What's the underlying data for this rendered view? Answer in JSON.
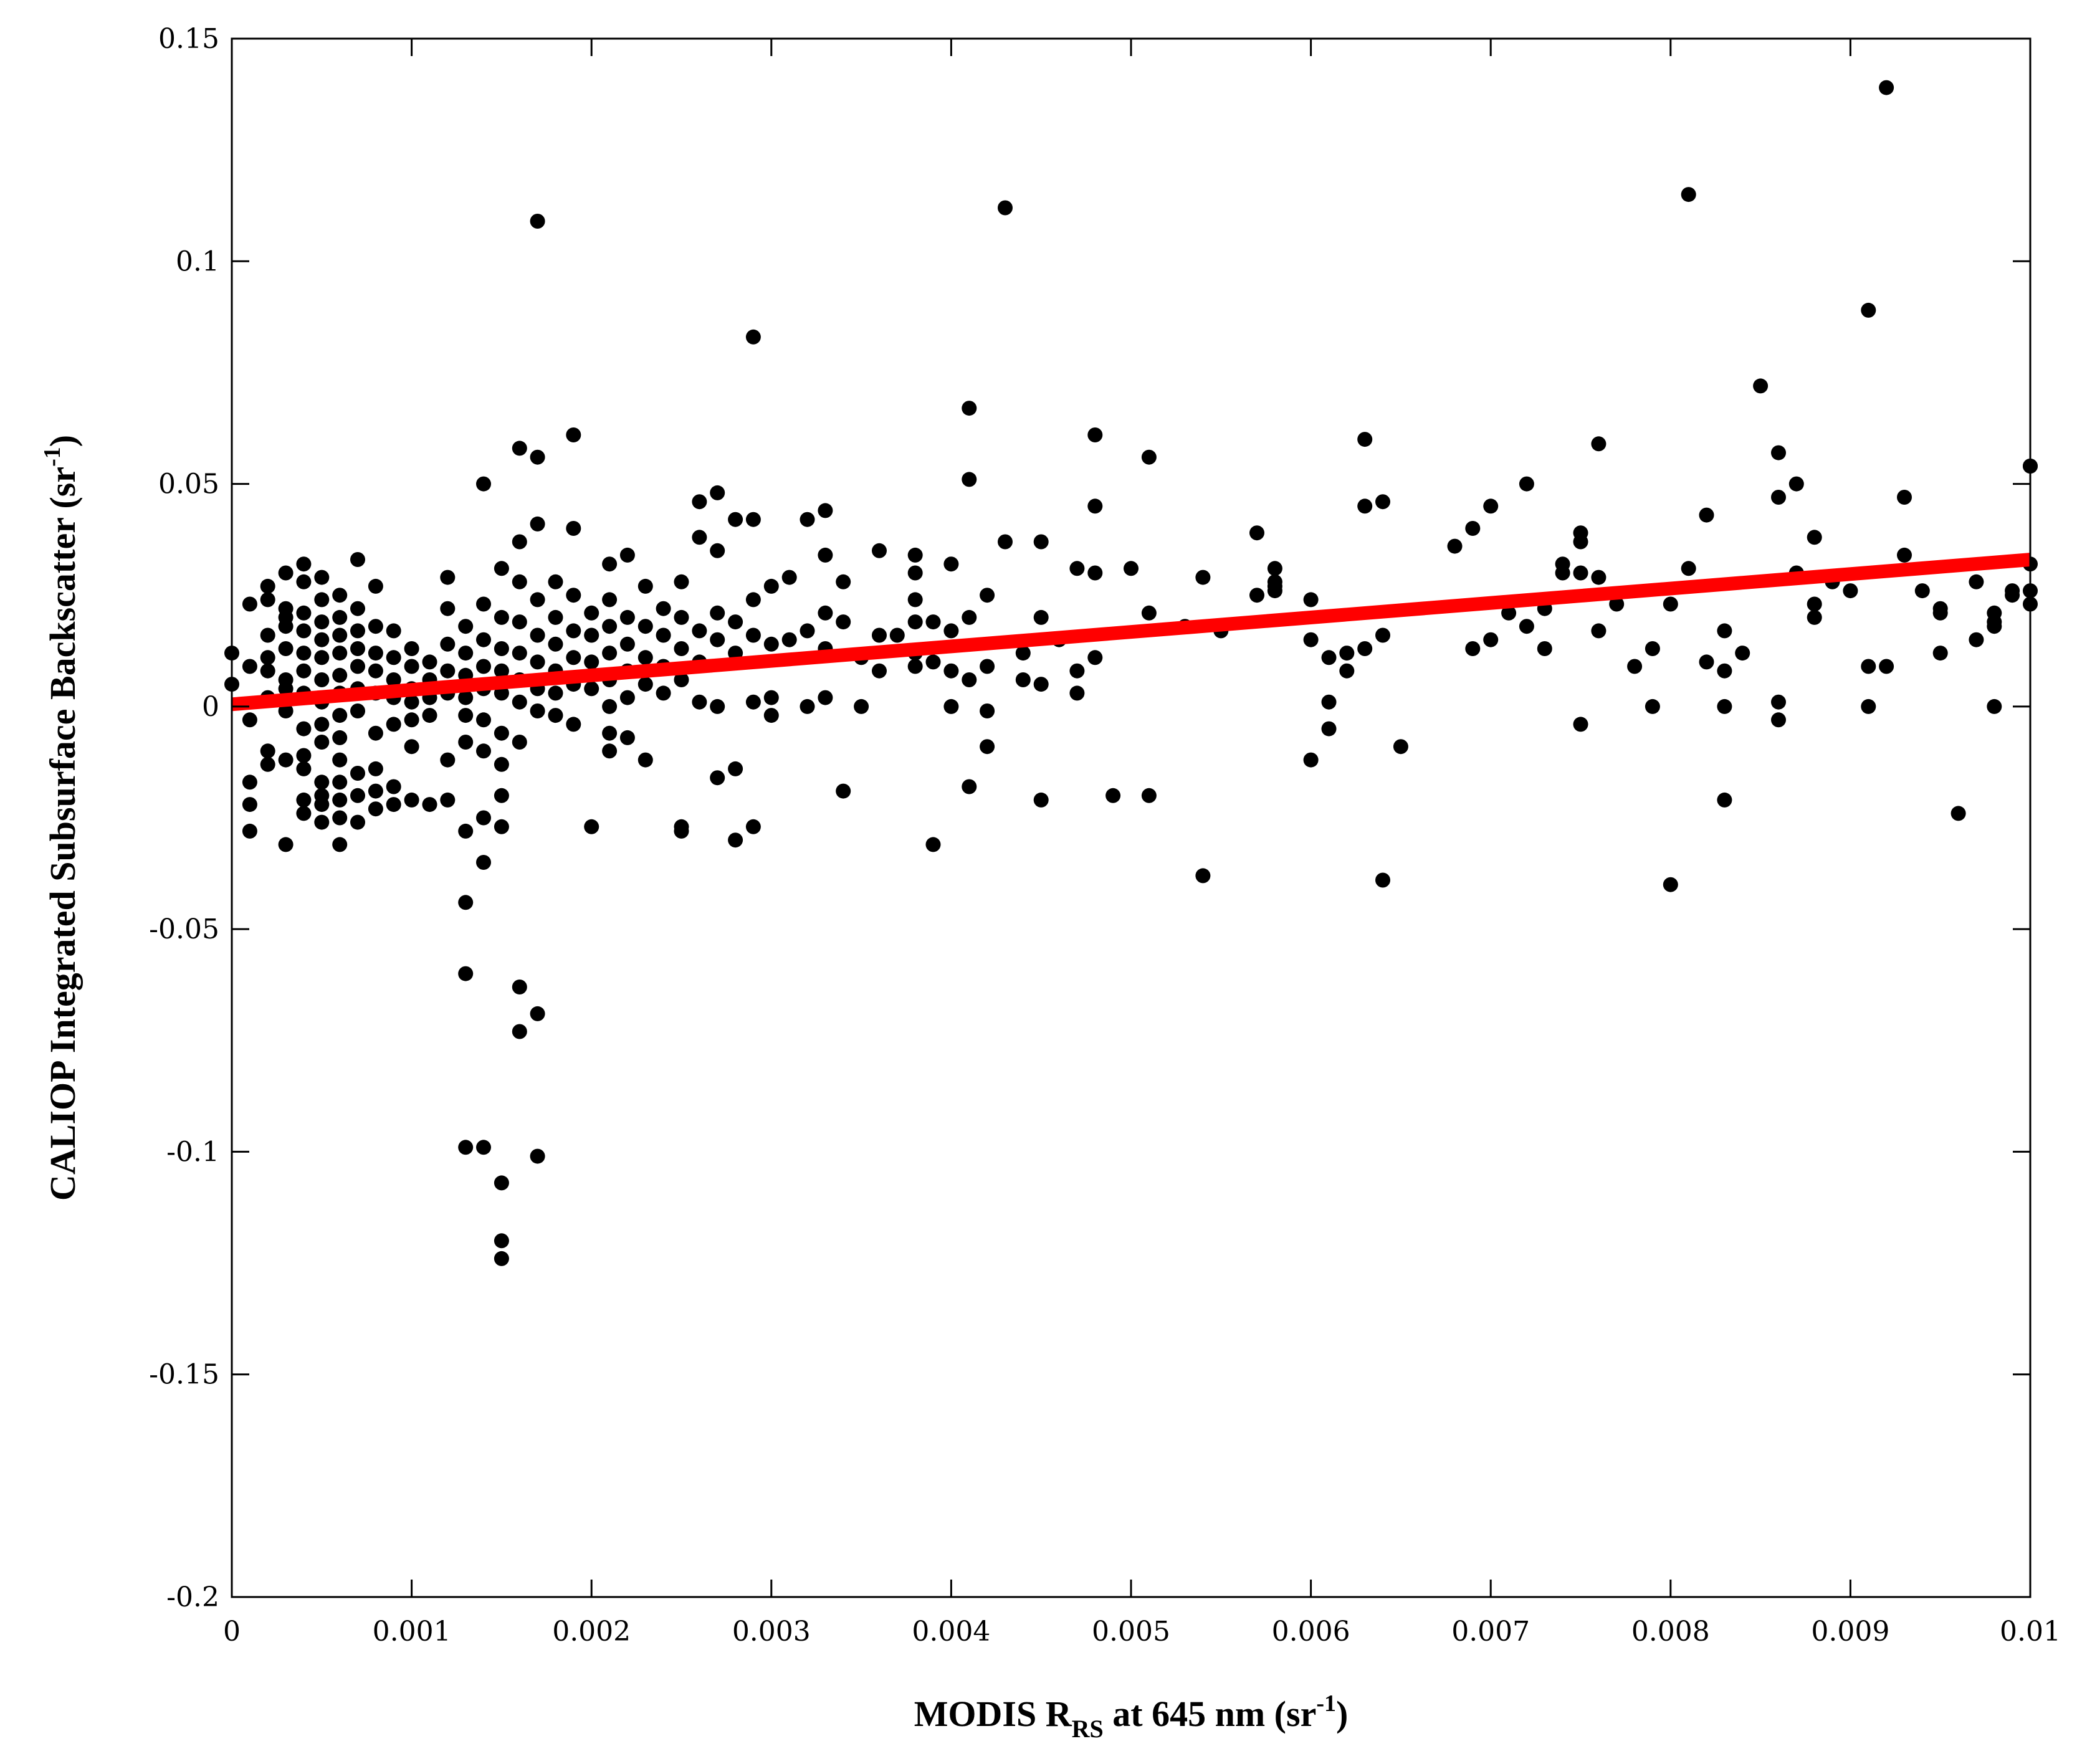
{
  "chart_data": {
    "type": "scatter",
    "xlabel": {
      "pre": "MODIS R",
      "sub": "RS",
      "post": " at 645 nm (sr",
      "sup": "-1",
      "close": ")"
    },
    "ylabel": {
      "pre": "CALIOP Integrated Subsurface Backscatter (sr",
      "sup": "-1",
      "close": ")"
    },
    "xlim": [
      0,
      0.01
    ],
    "ylim": [
      -0.2,
      0.15
    ],
    "xticks": [
      0,
      0.001,
      0.002,
      0.003,
      0.004,
      0.005,
      0.006,
      0.007,
      0.008,
      0.009,
      0.01
    ],
    "xtick_labels": [
      "0",
      "0.001",
      "0.002",
      "0.003",
      "0.004",
      "0.005",
      "0.006",
      "0.007",
      "0.008",
      "0.009",
      "0.01"
    ],
    "yticks": [
      -0.2,
      -0.15,
      -0.1,
      -0.05,
      0,
      0.05,
      0.1,
      0.15
    ],
    "ytick_labels": [
      "-0.2",
      "-0.15",
      "-0.1",
      "-0.05",
      "0",
      "0.05",
      "0.1",
      "0.15"
    ],
    "grid": false,
    "colors": {
      "points": "#000000",
      "fit_line": "#ff0000"
    },
    "fit_line": {
      "x": [
        0,
        0.01
      ],
      "y": [
        0.0005,
        0.033
      ]
    },
    "points": [
      [
        0.0,
        0.012
      ],
      [
        0.0,
        0.005
      ],
      [
        0.0001,
        0.023
      ],
      [
        0.0001,
        0.009
      ],
      [
        0.0001,
        -0.003
      ],
      [
        0.0001,
        -0.017
      ],
      [
        0.0001,
        -0.022
      ],
      [
        0.0001,
        -0.028
      ],
      [
        0.0002,
        0.024
      ],
      [
        0.0002,
        0.016
      ],
      [
        0.0002,
        0.008
      ],
      [
        0.0002,
        0.002
      ],
      [
        0.0002,
        -0.01
      ],
      [
        0.0002,
        -0.013
      ],
      [
        0.0002,
        0.027
      ],
      [
        0.0002,
        0.011
      ],
      [
        0.0003,
        0.03
      ],
      [
        0.0003,
        0.02
      ],
      [
        0.0003,
        0.018
      ],
      [
        0.0003,
        0.013
      ],
      [
        0.0003,
        0.006
      ],
      [
        0.0003,
        -0.001
      ],
      [
        0.0003,
        -0.012
      ],
      [
        0.0003,
        -0.031
      ],
      [
        0.0003,
        0.022
      ],
      [
        0.0003,
        0.004
      ],
      [
        0.0004,
        0.032
      ],
      [
        0.0004,
        0.028
      ],
      [
        0.0004,
        0.021
      ],
      [
        0.0004,
        0.017
      ],
      [
        0.0004,
        0.012
      ],
      [
        0.0004,
        0.008
      ],
      [
        0.0004,
        0.003
      ],
      [
        0.0004,
        -0.005
      ],
      [
        0.0004,
        -0.011
      ],
      [
        0.0004,
        -0.014
      ],
      [
        0.0004,
        -0.021
      ],
      [
        0.0004,
        -0.024
      ],
      [
        0.0005,
        0.029
      ],
      [
        0.0005,
        0.024
      ],
      [
        0.0005,
        0.019
      ],
      [
        0.0005,
        0.015
      ],
      [
        0.0005,
        0.011
      ],
      [
        0.0005,
        0.006
      ],
      [
        0.0005,
        0.001
      ],
      [
        0.0005,
        -0.004
      ],
      [
        0.0005,
        -0.008
      ],
      [
        0.0005,
        -0.017
      ],
      [
        0.0005,
        -0.02
      ],
      [
        0.0005,
        -0.022
      ],
      [
        0.0005,
        -0.026
      ],
      [
        0.0006,
        0.025
      ],
      [
        0.0006,
        0.02
      ],
      [
        0.0006,
        0.016
      ],
      [
        0.0006,
        0.012
      ],
      [
        0.0006,
        0.007
      ],
      [
        0.0006,
        0.003
      ],
      [
        0.0006,
        -0.002
      ],
      [
        0.0006,
        -0.007
      ],
      [
        0.0006,
        -0.012
      ],
      [
        0.0006,
        -0.017
      ],
      [
        0.0006,
        -0.021
      ],
      [
        0.0006,
        -0.031
      ],
      [
        0.0006,
        -0.025
      ],
      [
        0.0007,
        0.022
      ],
      [
        0.0007,
        0.017
      ],
      [
        0.0007,
        0.013
      ],
      [
        0.0007,
        0.009
      ],
      [
        0.0007,
        0.004
      ],
      [
        0.0007,
        -0.001
      ],
      [
        0.0007,
        -0.015
      ],
      [
        0.0007,
        -0.02
      ],
      [
        0.0007,
        -0.026
      ],
      [
        0.0007,
        0.033
      ],
      [
        0.0008,
        0.027
      ],
      [
        0.0008,
        0.018
      ],
      [
        0.0008,
        0.012
      ],
      [
        0.0008,
        0.008
      ],
      [
        0.0008,
        0.003
      ],
      [
        0.0008,
        -0.006
      ],
      [
        0.0008,
        -0.014
      ],
      [
        0.0008,
        -0.019
      ],
      [
        0.0008,
        -0.023
      ],
      [
        0.0009,
        0.017
      ],
      [
        0.0009,
        0.011
      ],
      [
        0.0009,
        0.006
      ],
      [
        0.0009,
        0.002
      ],
      [
        0.0009,
        -0.004
      ],
      [
        0.0009,
        -0.018
      ],
      [
        0.0009,
        -0.022
      ],
      [
        0.001,
        0.013
      ],
      [
        0.001,
        0.009
      ],
      [
        0.001,
        0.004
      ],
      [
        0.001,
        0.001
      ],
      [
        0.001,
        -0.003
      ],
      [
        0.001,
        -0.009
      ],
      [
        0.001,
        -0.021
      ],
      [
        0.0011,
        0.01
      ],
      [
        0.0011,
        0.006
      ],
      [
        0.0011,
        0.002
      ],
      [
        0.0011,
        -0.002
      ],
      [
        0.0011,
        -0.022
      ],
      [
        0.0012,
        0.029
      ],
      [
        0.0012,
        0.022
      ],
      [
        0.0012,
        0.014
      ],
      [
        0.0012,
        0.008
      ],
      [
        0.0012,
        0.003
      ],
      [
        0.0012,
        -0.012
      ],
      [
        0.0012,
        -0.021
      ],
      [
        0.0013,
        0.018
      ],
      [
        0.0013,
        0.012
      ],
      [
        0.0013,
        0.007
      ],
      [
        0.0013,
        0.002
      ],
      [
        0.0013,
        -0.002
      ],
      [
        0.0013,
        -0.008
      ],
      [
        0.0013,
        -0.028
      ],
      [
        0.0013,
        -0.044
      ],
      [
        0.0013,
        -0.06
      ],
      [
        0.0013,
        -0.099
      ],
      [
        0.0014,
        0.05
      ],
      [
        0.0014,
        0.023
      ],
      [
        0.0014,
        0.015
      ],
      [
        0.0014,
        0.009
      ],
      [
        0.0014,
        0.004
      ],
      [
        0.0014,
        -0.003
      ],
      [
        0.0014,
        -0.01
      ],
      [
        0.0014,
        -0.025
      ],
      [
        0.0014,
        -0.035
      ],
      [
        0.0014,
        -0.099
      ],
      [
        0.0015,
        0.031
      ],
      [
        0.0015,
        0.02
      ],
      [
        0.0015,
        0.013
      ],
      [
        0.0015,
        0.008
      ],
      [
        0.0015,
        0.003
      ],
      [
        0.0015,
        -0.006
      ],
      [
        0.0015,
        -0.013
      ],
      [
        0.0015,
        -0.02
      ],
      [
        0.0015,
        -0.027
      ],
      [
        0.0015,
        -0.12
      ],
      [
        0.0015,
        -0.124
      ],
      [
        0.0015,
        -0.107
      ],
      [
        0.0016,
        0.058
      ],
      [
        0.0016,
        0.037
      ],
      [
        0.0016,
        0.028
      ],
      [
        0.0016,
        0.019
      ],
      [
        0.0016,
        0.012
      ],
      [
        0.0016,
        0.006
      ],
      [
        0.0016,
        0.001
      ],
      [
        0.0016,
        -0.008
      ],
      [
        0.0016,
        -0.063
      ],
      [
        0.0016,
        -0.073
      ],
      [
        0.0017,
        0.109
      ],
      [
        0.0017,
        0.056
      ],
      [
        0.0017,
        0.041
      ],
      [
        0.0017,
        0.024
      ],
      [
        0.0017,
        0.016
      ],
      [
        0.0017,
        0.01
      ],
      [
        0.0017,
        0.004
      ],
      [
        0.0017,
        -0.001
      ],
      [
        0.0017,
        -0.069
      ],
      [
        0.0017,
        -0.101
      ],
      [
        0.0018,
        0.028
      ],
      [
        0.0018,
        0.02
      ],
      [
        0.0018,
        0.014
      ],
      [
        0.0018,
        0.008
      ],
      [
        0.0018,
        0.003
      ],
      [
        0.0018,
        -0.002
      ],
      [
        0.0019,
        0.061
      ],
      [
        0.0019,
        0.04
      ],
      [
        0.0019,
        0.025
      ],
      [
        0.0019,
        0.017
      ],
      [
        0.0019,
        0.011
      ],
      [
        0.0019,
        0.005
      ],
      [
        0.0019,
        -0.004
      ],
      [
        0.002,
        0.021
      ],
      [
        0.002,
        0.016
      ],
      [
        0.002,
        0.01
      ],
      [
        0.002,
        0.004
      ],
      [
        0.002,
        -0.027
      ],
      [
        0.0021,
        0.032
      ],
      [
        0.0021,
        0.024
      ],
      [
        0.0021,
        0.018
      ],
      [
        0.0021,
        0.012
      ],
      [
        0.0021,
        0.006
      ],
      [
        0.0021,
        0.0
      ],
      [
        0.0021,
        -0.006
      ],
      [
        0.0021,
        -0.01
      ],
      [
        0.0022,
        0.034
      ],
      [
        0.0022,
        0.02
      ],
      [
        0.0022,
        0.014
      ],
      [
        0.0022,
        0.008
      ],
      [
        0.0022,
        0.002
      ],
      [
        0.0022,
        -0.007
      ],
      [
        0.0023,
        0.027
      ],
      [
        0.0023,
        0.018
      ],
      [
        0.0023,
        0.011
      ],
      [
        0.0023,
        0.005
      ],
      [
        0.0023,
        -0.012
      ],
      [
        0.0024,
        0.022
      ],
      [
        0.0024,
        0.016
      ],
      [
        0.0024,
        0.009
      ],
      [
        0.0024,
        0.003
      ],
      [
        0.0025,
        0.028
      ],
      [
        0.0025,
        0.02
      ],
      [
        0.0025,
        0.013
      ],
      [
        0.0025,
        0.006
      ],
      [
        0.0025,
        -0.027
      ],
      [
        0.0025,
        -0.028
      ],
      [
        0.0026,
        0.046
      ],
      [
        0.0026,
        0.038
      ],
      [
        0.0026,
        0.017
      ],
      [
        0.0026,
        0.01
      ],
      [
        0.0026,
        0.001
      ],
      [
        0.0027,
        0.048
      ],
      [
        0.0027,
        0.035
      ],
      [
        0.0027,
        0.021
      ],
      [
        0.0027,
        0.015
      ],
      [
        0.0027,
        0.0
      ],
      [
        0.0027,
        -0.016
      ],
      [
        0.0028,
        0.042
      ],
      [
        0.0028,
        0.019
      ],
      [
        0.0028,
        0.012
      ],
      [
        0.0028,
        -0.014
      ],
      [
        0.0028,
        -0.03
      ],
      [
        0.0029,
        0.083
      ],
      [
        0.0029,
        0.042
      ],
      [
        0.0029,
        0.024
      ],
      [
        0.0029,
        0.016
      ],
      [
        0.0029,
        0.001
      ],
      [
        0.0029,
        -0.027
      ],
      [
        0.003,
        0.027
      ],
      [
        0.003,
        0.014
      ],
      [
        0.003,
        0.002
      ],
      [
        0.003,
        -0.002
      ],
      [
        0.0031,
        0.029
      ],
      [
        0.0031,
        0.015
      ],
      [
        0.0032,
        0.042
      ],
      [
        0.0032,
        0.017
      ],
      [
        0.0032,
        0.0
      ],
      [
        0.0033,
        0.044
      ],
      [
        0.0033,
        0.034
      ],
      [
        0.0033,
        0.021
      ],
      [
        0.0033,
        0.013
      ],
      [
        0.0033,
        0.002
      ],
      [
        0.0034,
        0.028
      ],
      [
        0.0034,
        0.019
      ],
      [
        0.0034,
        -0.019
      ],
      [
        0.0035,
        0.011
      ],
      [
        0.0035,
        0.0
      ],
      [
        0.0036,
        0.035
      ],
      [
        0.0036,
        0.016
      ],
      [
        0.0036,
        0.008
      ],
      [
        0.0037,
        0.016
      ],
      [
        0.0038,
        0.034
      ],
      [
        0.0038,
        0.03
      ],
      [
        0.0038,
        0.024
      ],
      [
        0.0038,
        0.019
      ],
      [
        0.0038,
        0.012
      ],
      [
        0.0038,
        0.009
      ],
      [
        0.0039,
        0.019
      ],
      [
        0.0039,
        0.01
      ],
      [
        0.0039,
        -0.031
      ],
      [
        0.004,
        0.032
      ],
      [
        0.004,
        0.017
      ],
      [
        0.004,
        0.008
      ],
      [
        0.004,
        0.0
      ],
      [
        0.0041,
        0.067
      ],
      [
        0.0041,
        0.051
      ],
      [
        0.0041,
        0.02
      ],
      [
        0.0041,
        0.006
      ],
      [
        0.0041,
        -0.018
      ],
      [
        0.0042,
        0.025
      ],
      [
        0.0042,
        0.009
      ],
      [
        0.0042,
        -0.001
      ],
      [
        0.0042,
        -0.009
      ],
      [
        0.0043,
        0.112
      ],
      [
        0.0043,
        0.037
      ],
      [
        0.0044,
        0.012
      ],
      [
        0.0044,
        0.006
      ],
      [
        0.0045,
        0.037
      ],
      [
        0.0045,
        0.02
      ],
      [
        0.0045,
        0.005
      ],
      [
        0.0045,
        -0.021
      ],
      [
        0.0046,
        0.015
      ],
      [
        0.0047,
        0.031
      ],
      [
        0.0047,
        0.008
      ],
      [
        0.0047,
        0.003
      ],
      [
        0.0048,
        0.061
      ],
      [
        0.0048,
        0.045
      ],
      [
        0.0048,
        0.03
      ],
      [
        0.0048,
        0.011
      ],
      [
        0.0049,
        -0.02
      ],
      [
        0.005,
        0.031
      ],
      [
        0.0051,
        0.056
      ],
      [
        0.0051,
        0.021
      ],
      [
        0.0051,
        -0.02
      ],
      [
        0.0053,
        0.018
      ],
      [
        0.0054,
        0.029
      ],
      [
        0.0054,
        -0.038
      ],
      [
        0.0055,
        0.017
      ],
      [
        0.0057,
        0.025
      ],
      [
        0.0057,
        0.039
      ],
      [
        0.0058,
        0.026
      ],
      [
        0.0058,
        0.028
      ],
      [
        0.0058,
        0.027
      ],
      [
        0.0058,
        0.031
      ],
      [
        0.006,
        0.024
      ],
      [
        0.006,
        0.015
      ],
      [
        0.006,
        -0.012
      ],
      [
        0.0061,
        0.011
      ],
      [
        0.0061,
        0.001
      ],
      [
        0.0061,
        -0.005
      ],
      [
        0.0062,
        0.008
      ],
      [
        0.0062,
        0.012
      ],
      [
        0.0063,
        0.06
      ],
      [
        0.0063,
        0.045
      ],
      [
        0.0063,
        0.013
      ],
      [
        0.0064,
        0.046
      ],
      [
        0.0064,
        0.016
      ],
      [
        0.0064,
        -0.039
      ],
      [
        0.0065,
        -0.009
      ],
      [
        0.0068,
        0.036
      ],
      [
        0.0069,
        0.013
      ],
      [
        0.0069,
        0.04
      ],
      [
        0.007,
        0.015
      ],
      [
        0.007,
        0.045
      ],
      [
        0.0071,
        0.021
      ],
      [
        0.0072,
        0.018
      ],
      [
        0.0072,
        0.05
      ],
      [
        0.0073,
        0.022
      ],
      [
        0.0073,
        0.013
      ],
      [
        0.0074,
        0.032
      ],
      [
        0.0074,
        0.03
      ],
      [
        0.0075,
        0.037
      ],
      [
        0.0075,
        0.039
      ],
      [
        0.0075,
        0.03
      ],
      [
        0.0075,
        -0.004
      ],
      [
        0.0076,
        0.059
      ],
      [
        0.0076,
        0.029
      ],
      [
        0.0076,
        0.017
      ],
      [
        0.0077,
        0.023
      ],
      [
        0.0078,
        0.009
      ],
      [
        0.0079,
        0.0
      ],
      [
        0.0079,
        0.013
      ],
      [
        0.008,
        0.023
      ],
      [
        0.008,
        -0.04
      ],
      [
        0.0081,
        0.031
      ],
      [
        0.0081,
        0.115
      ],
      [
        0.0082,
        0.01
      ],
      [
        0.0082,
        0.043
      ],
      [
        0.0083,
        0.0
      ],
      [
        0.0083,
        0.017
      ],
      [
        0.0083,
        0.008
      ],
      [
        0.0083,
        -0.021
      ],
      [
        0.0084,
        0.012
      ],
      [
        0.0085,
        0.072
      ],
      [
        0.0086,
        0.047
      ],
      [
        0.0086,
        0.001
      ],
      [
        0.0086,
        -0.003
      ],
      [
        0.0086,
        0.057
      ],
      [
        0.0087,
        0.03
      ],
      [
        0.0087,
        0.05
      ],
      [
        0.0088,
        0.038
      ],
      [
        0.0088,
        0.023
      ],
      [
        0.0088,
        0.02
      ],
      [
        0.0089,
        0.028
      ],
      [
        0.009,
        0.026
      ],
      [
        0.0091,
        0.089
      ],
      [
        0.0091,
        0.009
      ],
      [
        0.0091,
        0.0
      ],
      [
        0.0092,
        0.139
      ],
      [
        0.0092,
        0.009
      ],
      [
        0.0093,
        0.047
      ],
      [
        0.0093,
        0.034
      ],
      [
        0.0094,
        0.026
      ],
      [
        0.0095,
        0.022
      ],
      [
        0.0095,
        0.021
      ],
      [
        0.0095,
        0.012
      ],
      [
        0.0096,
        -0.024
      ],
      [
        0.0097,
        0.015
      ],
      [
        0.0097,
        0.028
      ],
      [
        0.0098,
        0.021
      ],
      [
        0.0098,
        0.018
      ],
      [
        0.0098,
        0.019
      ],
      [
        0.0098,
        0.0
      ],
      [
        0.0099,
        0.026
      ],
      [
        0.0099,
        0.025
      ],
      [
        0.01,
        0.023
      ],
      [
        0.01,
        0.054
      ],
      [
        0.01,
        0.054
      ],
      [
        0.01,
        0.026
      ],
      [
        0.01,
        0.032
      ]
    ]
  }
}
